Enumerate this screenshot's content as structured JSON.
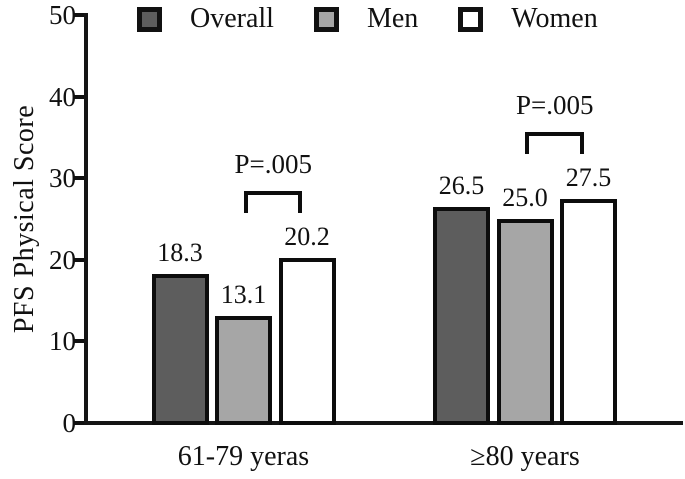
{
  "chart_data": {
    "type": "bar",
    "title": "",
    "xlabel": "",
    "ylabel": "PFS Physical Score",
    "ylim": [
      0,
      50
    ],
    "yticks": [
      0,
      10,
      20,
      30,
      40,
      50
    ],
    "categories": [
      "61-79 yeras",
      "≥80 years"
    ],
    "series": [
      {
        "name": "Overall",
        "color": "#5d5d5d",
        "values": [
          18.3,
          26.5
        ],
        "labels": [
          "18.3",
          "26.5"
        ]
      },
      {
        "name": "Men",
        "color": "#a6a6a6",
        "values": [
          13.1,
          25.0
        ],
        "labels": [
          "13.1",
          "25.0"
        ]
      },
      {
        "name": "Women",
        "color": "#ffffff",
        "values": [
          20.2,
          27.5
        ],
        "labels": [
          "20.2",
          "27.5"
        ]
      }
    ],
    "annotations": [
      {
        "text": "P=.005",
        "group_index": 0,
        "between_series": [
          "Men",
          "Women"
        ]
      },
      {
        "text": "P=.005",
        "group_index": 1,
        "between_series": [
          "Men",
          "Women"
        ]
      }
    ],
    "legend_position": "top",
    "grid": false,
    "axis_color": "#151515",
    "bar_border_color": "#0d0d0d"
  }
}
